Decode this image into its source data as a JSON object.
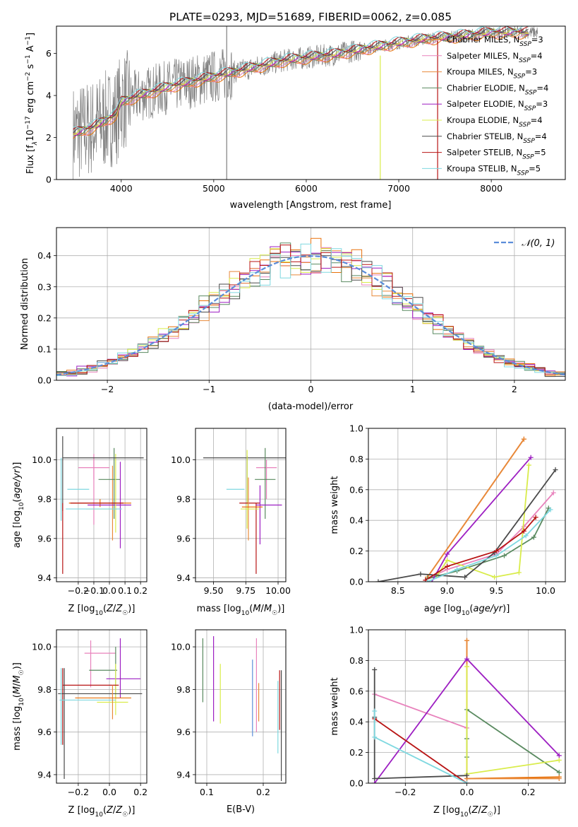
{
  "figure": {
    "title": "PLATE=0293, MJD=51689, FIBERID=0062, z=0.085"
  },
  "colors": {
    "Chabrier MILES": "#e8710a",
    "Salpeter MILES": "#e882bc",
    "Kroupa MILES": "#e8893a",
    "Chabrier ELODIE": "#5a8a60",
    "Salpeter ELODIE": "#9d1fc2",
    "Kroupa ELODIE": "#d9ec4a",
    "Chabrier STELIB": "#4a4a4a",
    "Salpeter STELIB": "#b81414",
    "Kroupa STELIB": "#7fd8e0",
    "normal": "#5b8dd9",
    "grid": "#b0b0b0"
  },
  "chart_data": [
    {
      "type": "line",
      "title": "PLATE=0293, MJD=51689, FIBERID=0062, z=0.085",
      "xlabel": "wavelength [Angstrom, rest frame]",
      "ylabel_parts": [
        "Flux [f",
        "λ",
        "10",
        "−17",
        " erg cm",
        "−2",
        " s",
        "−1",
        " A",
        "−1",
        "]"
      ],
      "xlim": [
        3300,
        8800
      ],
      "ylim": [
        0,
        7.3
      ],
      "xticks": [
        4000,
        5000,
        6000,
        7000,
        8000
      ],
      "yticks": [
        0,
        2,
        4,
        6
      ],
      "grid": false,
      "legend_position": "top-right",
      "legend": [
        {
          "name": "Chabrier MILES",
          "n": "3"
        },
        {
          "name": "Salpeter MILES",
          "n": "4"
        },
        {
          "name": "Kroupa MILES",
          "n": "3"
        },
        {
          "name": "Chabrier ELODIE",
          "n": "4"
        },
        {
          "name": "Salpeter ELODIE",
          "n": "3"
        },
        {
          "name": "Kroupa ELODIE",
          "n": "4"
        },
        {
          "name": "Chabrier STELIB",
          "n": "4"
        },
        {
          "name": "Salpeter STELIB",
          "n": "5"
        },
        {
          "name": "Kroupa STELIB",
          "n": "5"
        }
      ],
      "legend_label_suffix": ", N",
      "legend_sub": "SSP",
      "continuum_x": [
        3500,
        3700,
        3950,
        4000,
        4200,
        4500,
        4800,
        5000,
        5200,
        5500,
        5800,
        6000,
        6300,
        6600,
        6800,
        7000,
        7300,
        7600,
        8000,
        8400
      ],
      "continuum_y": [
        2.2,
        2.5,
        3.1,
        3.7,
        4.0,
        4.4,
        4.7,
        4.9,
        5.1,
        5.4,
        5.7,
        5.8,
        5.95,
        6.2,
        6.35,
        6.5,
        6.7,
        6.8,
        7.0,
        7.0
      ],
      "spikes": [
        {
          "x": 5140,
          "y0": 0,
          "y1": 7.3
        },
        {
          "x": 6800,
          "y0": 0,
          "y1": 5.9
        },
        {
          "x": 7420,
          "y0": 0,
          "y1": 6.6
        }
      ]
    },
    {
      "type": "histogram",
      "xlabel": "(data-model)/error",
      "ylabel": "Normed distribution",
      "xlim": [
        -2.5,
        2.5
      ],
      "ylim": [
        0,
        0.49
      ],
      "xticks": [
        -2,
        -1,
        0,
        1,
        2
      ],
      "yticks": [
        0.0,
        0.1,
        0.2,
        0.3,
        0.4
      ],
      "grid": true,
      "legend_position": "top-right",
      "legend": [
        "𝒩(0, 1)"
      ],
      "bin_width": 0.1
    },
    {
      "type": "scatter",
      "xlabel": "Z [log10(Z/Z☉)]",
      "ylabel": "age  [log10(age/yr)]",
      "xlim": [
        -0.34,
        0.24
      ],
      "ylim": [
        9.38,
        10.16
      ],
      "xticks": [
        -0.2,
        -0.1,
        0.0,
        0.1,
        0.2
      ],
      "yticks": [
        9.4,
        9.6,
        9.8,
        10.0
      ],
      "grid": true,
      "errorbars": [
        {
          "s": "Chabrier MILES",
          "x": -0.06,
          "xe": 0.2,
          "y": 9.78,
          "ye": 0.02
        },
        {
          "s": "Salpeter MILES",
          "x": -0.1,
          "xe": 0.1,
          "y": 9.96,
          "ye": 0.06
        },
        {
          "s": "Salpeter MILES",
          "x": -0.1,
          "xe": 0.0,
          "y": 9.85,
          "ye": 0.18
        },
        {
          "s": "Kroupa MILES",
          "x": 0.02,
          "xe": 0.0,
          "y": 9.78,
          "ye": 0.19
        },
        {
          "s": "Chabrier ELODIE",
          "x": 0.0,
          "xe": 0.07,
          "y": 9.9,
          "ye": 0.0
        },
        {
          "s": "Chabrier ELODIE",
          "x": 0.03,
          "xe": 0.0,
          "y": 9.88,
          "ye": 0.18
        },
        {
          "s": "Salpeter ELODIE",
          "x": 0.07,
          "xe": 0.0,
          "y": 9.77,
          "ye": 0.22
        },
        {
          "s": "Salpeter ELODIE",
          "x": 0.0,
          "xe": 0.14,
          "y": 9.77,
          "ye": 0.0
        },
        {
          "s": "Kroupa ELODIE",
          "x": 0.04,
          "xe": 0.0,
          "y": 9.83,
          "ye": 0.2
        },
        {
          "s": "Kroupa ELODIE",
          "x": -0.05,
          "xe": 0.1,
          "y": 9.75,
          "ye": 0.0
        },
        {
          "s": "Chabrier STELIB",
          "x": -0.04,
          "xe": 0.26,
          "y": 10.01,
          "ye": 0.0
        },
        {
          "s": "Chabrier STELIB",
          "x": -0.3,
          "xe": 0.0,
          "y": 9.93,
          "ye": 0.19
        },
        {
          "s": "Salpeter STELIB",
          "x": -0.08,
          "xe": 0.17,
          "y": 9.78,
          "ye": 0.0
        },
        {
          "s": "Salpeter STELIB",
          "x": -0.3,
          "xe": 0.0,
          "y": 9.6,
          "ye": 0.18
        },
        {
          "s": "Kroupa STELIB",
          "x": -0.2,
          "xe": 0.07,
          "y": 9.85,
          "ye": 0.0
        },
        {
          "s": "Kroupa STELIB",
          "x": -0.31,
          "xe": 0.0,
          "y": 9.85,
          "ye": 0.16
        },
        {
          "s": "Kroupa STELIB",
          "x": -0.1,
          "xe": 0.18,
          "y": 9.75,
          "ye": 0.0
        }
      ]
    },
    {
      "type": "scatter",
      "xlabel": "mass [log10(M/M☉)]",
      "ylabel": "",
      "xlim": [
        9.36,
        10.06
      ],
      "ylim": [
        9.38,
        10.16
      ],
      "xticks": [
        9.5,
        9.75,
        10.0
      ],
      "ytick_labels": [
        "9.4",
        "9.6",
        "9.8",
        "10.0"
      ],
      "xtick_labels": [
        "9.50",
        "9.75",
        "10.00"
      ],
      "yticks": [
        9.4,
        9.6,
        9.8,
        10.0
      ],
      "grid": true,
      "errorbars": [
        {
          "s": "Chabrier STELIB",
          "x": 9.74,
          "xe": 0.32,
          "y": 10.01,
          "ye": 0.0
        },
        {
          "s": "Chabrier STELIB",
          "x": 9.76,
          "xe": 0.0,
          "y": 9.9,
          "ye": 0.12
        },
        {
          "s": "Salpeter MILES",
          "x": 9.91,
          "xe": 0.08,
          "y": 9.96,
          "ye": 0.0
        },
        {
          "s": "Salpeter MILES",
          "x": 9.91,
          "xe": 0.0,
          "y": 9.9,
          "ye": 0.1
        },
        {
          "s": "Chabrier ELODIE",
          "x": 9.9,
          "xe": 0.08,
          "y": 9.9,
          "ye": 0.0
        },
        {
          "s": "Chabrier ELODIE",
          "x": 9.9,
          "xe": 0.0,
          "y": 9.88,
          "ye": 0.18
        },
        {
          "s": "Kroupa STELIB",
          "x": 9.67,
          "xe": 0.07,
          "y": 9.85,
          "ye": 0.0
        },
        {
          "s": "Kroupa ELODIE",
          "x": 9.76,
          "xe": 0.0,
          "y": 9.85,
          "ye": 0.2
        },
        {
          "s": "Salpeter STELIB",
          "x": 9.78,
          "xe": 0.08,
          "y": 9.78,
          "ye": 0.0
        },
        {
          "s": "Salpeter STELIB",
          "x": 9.83,
          "xe": 0.0,
          "y": 9.6,
          "ye": 0.18
        },
        {
          "s": "Salpeter ELODIE",
          "x": 9.93,
          "xe": 0.1,
          "y": 9.77,
          "ye": 0.0
        },
        {
          "s": "Salpeter ELODIE",
          "x": 9.86,
          "xe": 0.0,
          "y": 9.72,
          "ye": 0.15
        },
        {
          "s": "Kroupa MILES",
          "x": 9.77,
          "xe": 0.0,
          "y": 9.75,
          "ye": 0.16
        },
        {
          "s": "Kroupa ELODIE",
          "x": 9.78,
          "xe": 0.07,
          "y": 9.75,
          "ye": 0.0
        },
        {
          "s": "Chabrier MILES",
          "x": 9.8,
          "xe": 0.08,
          "y": 9.76,
          "ye": 0.0
        }
      ]
    },
    {
      "type": "line",
      "xlabel": "age  [log10(age/yr)]",
      "ylabel": "mass weight",
      "xlim": [
        8.2,
        10.2
      ],
      "ylim": [
        0,
        1
      ],
      "xticks": [
        8.5,
        9.0,
        9.5,
        10.0
      ],
      "yticks": [
        0.0,
        0.2,
        0.4,
        0.6,
        0.8,
        1.0
      ],
      "grid": true,
      "series": [
        {
          "s": "Chabrier MILES",
          "x": [
            8.8,
            9.78
          ],
          "y": [
            0.03,
            0.93
          ]
        },
        {
          "s": "Salpeter MILES",
          "x": [
            8.8,
            9.0,
            9.5,
            9.78,
            10.08
          ],
          "y": [
            0.02,
            0.08,
            0.18,
            0.36,
            0.58
          ]
        },
        {
          "s": "Kroupa MILES",
          "x": [
            8.8,
            9.78
          ],
          "y": [
            0.03,
            0.93
          ]
        },
        {
          "s": "Chabrier ELODIE",
          "x": [
            8.8,
            9.1,
            9.58,
            9.88,
            10.03
          ],
          "y": [
            0.02,
            0.07,
            0.17,
            0.29,
            0.48
          ]
        },
        {
          "s": "Salpeter ELODIE",
          "x": [
            8.8,
            9.0,
            9.85
          ],
          "y": [
            -0.05,
            0.18,
            0.81
          ]
        },
        {
          "s": "Kroupa ELODIE",
          "x": [
            8.9,
            9.0,
            9.48,
            9.73,
            9.83
          ],
          "y": [
            0.04,
            0.14,
            0.03,
            0.06,
            0.76
          ]
        },
        {
          "s": "Chabrier STELIB",
          "x": [
            8.3,
            8.73,
            9.18,
            9.48,
            10.1
          ],
          "y": [
            0.0,
            0.05,
            0.03,
            0.19,
            0.73
          ]
        },
        {
          "s": "Salpeter STELIB",
          "x": [
            8.78,
            9.0,
            9.5,
            9.78,
            9.9
          ],
          "y": [
            0.01,
            0.1,
            0.2,
            0.33,
            0.42
          ]
        },
        {
          "s": "Kroupa STELIB",
          "x": [
            8.8,
            9.1,
            9.5,
            9.8,
            10.05
          ],
          "y": [
            0.0,
            0.08,
            0.17,
            0.3,
            0.47
          ]
        }
      ]
    },
    {
      "type": "scatter",
      "xlabel": "Z [log10(Z/Z☉)]",
      "ylabel": "mass [log10(M/M☉)]",
      "xlim": [
        -0.34,
        0.24
      ],
      "ylim": [
        9.36,
        10.08
      ],
      "xticks": [
        -0.2,
        0.0,
        0.2
      ],
      "yticks": [
        9.4,
        9.6,
        9.8,
        10.0
      ],
      "grid": true,
      "errorbars": [
        {
          "s": "Salpeter MILES",
          "x": -0.06,
          "xe": 0.1,
          "y": 9.97,
          "ye": 0.0
        },
        {
          "s": "Salpeter MILES",
          "x": -0.12,
          "xe": 0.0,
          "y": 9.92,
          "ye": 0.11
        },
        {
          "s": "Salpeter ELODIE",
          "x": 0.07,
          "xe": 0.0,
          "y": 9.9,
          "ye": 0.14
        },
        {
          "s": "Salpeter ELODIE",
          "x": 0.09,
          "xe": 0.11,
          "y": 9.85,
          "ye": 0.0
        },
        {
          "s": "Chabrier ELODIE",
          "x": -0.04,
          "xe": 0.09,
          "y": 9.89,
          "ye": 0.0
        },
        {
          "s": "Chabrier ELODIE",
          "x": 0.04,
          "xe": 0.0,
          "y": 9.88,
          "ye": 0.12
        },
        {
          "s": "Kroupa ELODIE",
          "x": 0.04,
          "xe": 0.0,
          "y": 9.8,
          "ye": 0.12
        },
        {
          "s": "Kroupa ELODIE",
          "x": 0.02,
          "xe": 0.1,
          "y": 9.74,
          "ye": 0.0
        },
        {
          "s": "Salpeter STELIB",
          "x": -0.12,
          "xe": 0.18,
          "y": 9.82,
          "ye": 0.0
        },
        {
          "s": "Salpeter STELIB",
          "x": -0.3,
          "xe": 0.0,
          "y": 9.72,
          "ye": 0.18
        },
        {
          "s": "Chabrier STELIB",
          "x": -0.06,
          "xe": 0.27,
          "y": 9.78,
          "ye": 0.0
        },
        {
          "s": "Chabrier STELIB",
          "x": -0.29,
          "xe": 0.0,
          "y": 9.64,
          "ye": 0.26
        },
        {
          "s": "Kroupa STELIB",
          "x": -0.14,
          "xe": 0.18,
          "y": 9.75,
          "ye": 0.0
        },
        {
          "s": "Kroupa STELIB",
          "x": -0.31,
          "xe": 0.0,
          "y": 9.72,
          "ye": 0.18
        },
        {
          "s": "Kroupa MILES",
          "x": 0.02,
          "xe": 0.0,
          "y": 9.74,
          "ye": 0.08
        },
        {
          "s": "Chabrier MILES",
          "x": -0.04,
          "xe": 0.18,
          "y": 9.76,
          "ye": 0.0
        }
      ]
    },
    {
      "type": "scatter",
      "xlabel": "E(B-V)",
      "ylabel": "",
      "xlim": [
        0.08,
        0.24
      ],
      "ylim": [
        9.36,
        10.08
      ],
      "xticks": [
        0.1,
        0.2
      ],
      "yticks": [
        9.4,
        9.6,
        9.8,
        10.0
      ],
      "grid": true,
      "errorbars": [
        {
          "s": "Chabrier ELODIE",
          "x": 0.093,
          "xe": 0.0,
          "y": 9.89,
          "ye": 0.15
        },
        {
          "s": "Salpeter ELODIE",
          "x": 0.112,
          "xe": 0.0,
          "y": 9.85,
          "ye": 0.2
        },
        {
          "s": "Kroupa ELODIE",
          "x": 0.124,
          "xe": 0.0,
          "y": 9.78,
          "ye": 0.14
        },
        {
          "s": "normal",
          "x": 0.181,
          "xe": 0.0,
          "y": 9.76,
          "ye": 0.18
        },
        {
          "s": "Salpeter MILES",
          "x": 0.188,
          "xe": 0.0,
          "y": 9.82,
          "ye": 0.22
        },
        {
          "s": "Kroupa MILES",
          "x": 0.192,
          "xe": 0.0,
          "y": 9.74,
          "ye": 0.09
        },
        {
          "s": "Kroupa STELIB",
          "x": 0.226,
          "xe": 0.0,
          "y": 9.67,
          "ye": 0.17
        },
        {
          "s": "Salpeter STELIB",
          "x": 0.229,
          "xe": 0.0,
          "y": 9.75,
          "ye": 0.14
        },
        {
          "s": "Chabrier STELIB",
          "x": 0.232,
          "xe": 0.0,
          "y": 9.63,
          "ye": 0.26
        }
      ]
    },
    {
      "type": "line",
      "xlabel": "Z [log10(Z/Z☉)]",
      "ylabel": "mass weight",
      "xlim": [
        -0.32,
        0.32
      ],
      "ylim": [
        0,
        1
      ],
      "xticks": [
        -0.2,
        0.0,
        0.2
      ],
      "yticks": [
        0.0,
        0.2,
        0.4,
        0.6,
        0.8,
        1.0
      ],
      "grid": true,
      "series": [
        {
          "s": "Chabrier MILES",
          "x": [
            0.0,
            0.0,
            0.3
          ],
          "y": [
            0.93,
            0.03,
            0.04
          ]
        },
        {
          "s": "Salpeter MILES",
          "x": [
            -0.3,
            0.0
          ],
          "y": [
            0.58,
            0.36
          ]
        },
        {
          "s": "Kroupa MILES",
          "x": [
            0.0,
            0.0,
            0.3
          ],
          "y": [
            0.93,
            0.03,
            0.03
          ]
        },
        {
          "s": "Chabrier ELODIE",
          "x": [
            0.0,
            0.0,
            0.0,
            0.3
          ],
          "y": [
            0.17,
            0.29,
            0.48,
            0.07
          ]
        },
        {
          "s": "Salpeter ELODIE",
          "x": [
            -0.3,
            0.0,
            0.3
          ],
          "y": [
            0.0,
            0.81,
            0.18
          ]
        },
        {
          "s": "Kroupa ELODIE",
          "x": [
            0.0,
            0.0,
            0.3
          ],
          "y": [
            0.76,
            0.06,
            0.15
          ]
        },
        {
          "s": "Chabrier STELIB",
          "x": [
            -0.3,
            -0.3,
            -0.3,
            0.0
          ],
          "y": [
            0.74,
            0.43,
            0.03,
            0.05
          ]
        },
        {
          "s": "Salpeter STELIB",
          "x": [
            -0.3,
            0.0
          ],
          "y": [
            0.42,
            0.0
          ]
        },
        {
          "s": "Kroupa STELIB",
          "x": [
            -0.3,
            -0.3,
            0.0
          ],
          "y": [
            0.47,
            0.3,
            0.0
          ]
        }
      ]
    }
  ]
}
